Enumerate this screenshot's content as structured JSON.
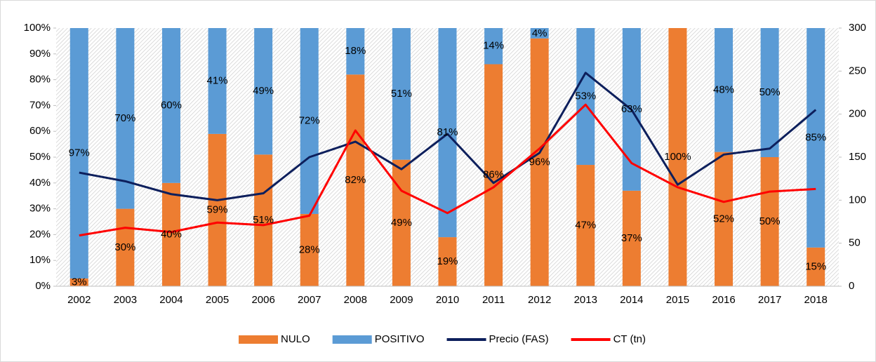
{
  "chart_data": {
    "type": "bar",
    "stacked": true,
    "categories": [
      "2002",
      "2003",
      "2004",
      "2005",
      "2006",
      "2007",
      "2008",
      "2009",
      "2010",
      "2011",
      "2012",
      "2013",
      "2014",
      "2015",
      "2016",
      "2017",
      "2018"
    ],
    "series": [
      {
        "name": "NULO",
        "type": "bar",
        "color": "#ed7d31",
        "values": [
          3,
          30,
          40,
          59,
          51,
          28,
          82,
          49,
          19,
          86,
          96,
          47,
          37,
          100,
          52,
          50,
          15
        ],
        "value_labels": [
          "3%",
          "30%",
          "40%",
          "59%",
          "51%",
          "28%",
          "82%",
          "49%",
          "19%",
          "86%",
          "96%",
          "47%",
          "37%",
          "100%",
          "52%",
          "50%",
          "15%"
        ]
      },
      {
        "name": "POSITIVO",
        "type": "bar",
        "color": "#5b9bd5",
        "values": [
          97,
          70,
          60,
          41,
          49,
          72,
          18,
          51,
          81,
          14,
          4,
          53,
          63,
          0,
          48,
          50,
          85
        ],
        "value_labels": [
          "97%",
          "70%",
          "60%",
          "41%",
          "49%",
          "72%",
          "18%",
          "51%",
          "81%",
          "14%",
          "4%",
          "53%",
          "63%",
          null,
          "48%",
          "50%",
          "85%"
        ]
      },
      {
        "name": "Precio (FAS)",
        "type": "line",
        "axis": "y2",
        "color": "#0d1f5c",
        "values": [
          132,
          122,
          107,
          100,
          108,
          150,
          168,
          136,
          177,
          120,
          155,
          248,
          205,
          118,
          153,
          160,
          205
        ]
      },
      {
        "name": "CT (tn)",
        "type": "line",
        "axis": "y2",
        "color": "#ff0000",
        "values": [
          59,
          68,
          63,
          74,
          71,
          82,
          181,
          111,
          85,
          115,
          160,
          211,
          143,
          115,
          98,
          110,
          113
        ]
      }
    ],
    "ylim": [
      0,
      100
    ],
    "yticks": [
      {
        "value": 0,
        "label": "0%"
      },
      {
        "value": 10,
        "label": "10%"
      },
      {
        "value": 20,
        "label": "20%"
      },
      {
        "value": 30,
        "label": "30%"
      },
      {
        "value": 40,
        "label": "40%"
      },
      {
        "value": 50,
        "label": "50%"
      },
      {
        "value": 60,
        "label": "60%"
      },
      {
        "value": 70,
        "label": "70%"
      },
      {
        "value": 80,
        "label": "80%"
      },
      {
        "value": 90,
        "label": "90%"
      },
      {
        "value": 100,
        "label": "100%"
      }
    ],
    "y2lim": [
      0,
      300
    ],
    "y2ticks": [
      0,
      50,
      100,
      150,
      200,
      250,
      300
    ],
    "legend": "bottom"
  }
}
